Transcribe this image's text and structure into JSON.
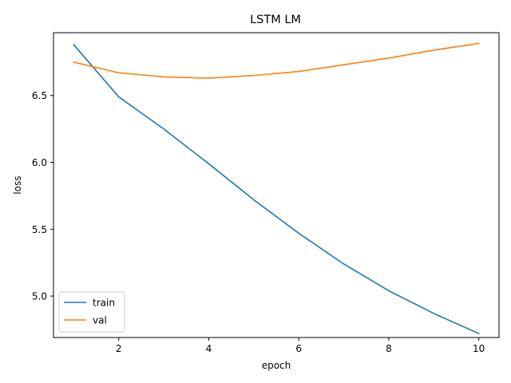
{
  "chart_data": {
    "type": "line",
    "title": "LSTM LM",
    "xlabel": "epoch",
    "ylabel": "loss",
    "xlim": [
      0.55,
      10.45
    ],
    "ylim": [
      4.69,
      6.97
    ],
    "x_ticks": [
      2,
      4,
      6,
      8,
      10
    ],
    "y_ticks": [
      5.0,
      5.5,
      6.0,
      6.5
    ],
    "grid": false,
    "legend_position": "lower-left",
    "x": [
      1,
      2,
      3,
      4,
      5,
      6,
      7,
      8,
      9,
      10
    ],
    "series": [
      {
        "name": "train",
        "color": "#1f77b4",
        "values": [
          6.88,
          6.49,
          6.25,
          5.99,
          5.72,
          5.47,
          5.24,
          5.04,
          4.87,
          4.72
        ]
      },
      {
        "name": "val",
        "color": "#ff7f0e",
        "values": [
          6.75,
          6.67,
          6.64,
          6.63,
          6.65,
          6.68,
          6.73,
          6.78,
          6.84,
          6.89
        ]
      }
    ]
  }
}
